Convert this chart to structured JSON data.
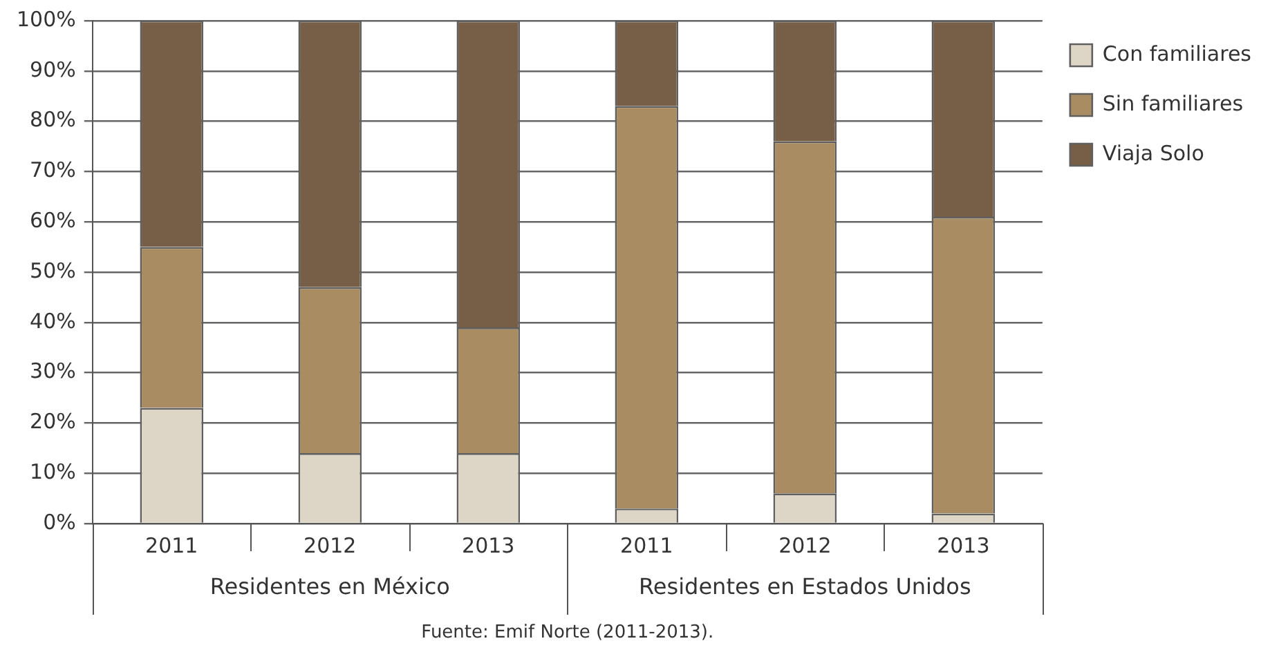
{
  "chart_data": {
    "type": "bar",
    "stacked": true,
    "categories": [
      "2011",
      "2012",
      "2013",
      "2011",
      "2012",
      "2013"
    ],
    "series": [
      {
        "name": "Con familiares",
        "color": "#ddd5c6",
        "values": [
          23,
          14,
          14,
          3,
          6,
          2
        ]
      },
      {
        "name": "Sin familiares",
        "color": "#a98c62",
        "values": [
          32,
          33,
          25,
          80,
          70,
          59
        ]
      },
      {
        "name": "Viaja Solo",
        "color": "#765e47",
        "values": [
          45,
          53,
          61,
          17,
          24,
          39
        ]
      }
    ],
    "ylim": [
      0,
      100
    ],
    "yticks": [
      {
        "value": 0,
        "label": "0%"
      },
      {
        "value": 10,
        "label": "10%"
      },
      {
        "value": 20,
        "label": "20%"
      },
      {
        "value": 30,
        "label": "30%"
      },
      {
        "value": 40,
        "label": "40%"
      },
      {
        "value": 50,
        "label": "50%"
      },
      {
        "value": 60,
        "label": "60%"
      },
      {
        "value": 70,
        "label": "70%"
      },
      {
        "value": 80,
        "label": "80%"
      },
      {
        "value": 90,
        "label": "90%"
      },
      {
        "value": 100,
        "label": "100%"
      }
    ],
    "grid": "y",
    "legend": "top right",
    "annotations": [
      "Residentes en México",
      "Residentes en Estados Unidos",
      "Fuente: Emif Norte (2011-2013)."
    ]
  }
}
